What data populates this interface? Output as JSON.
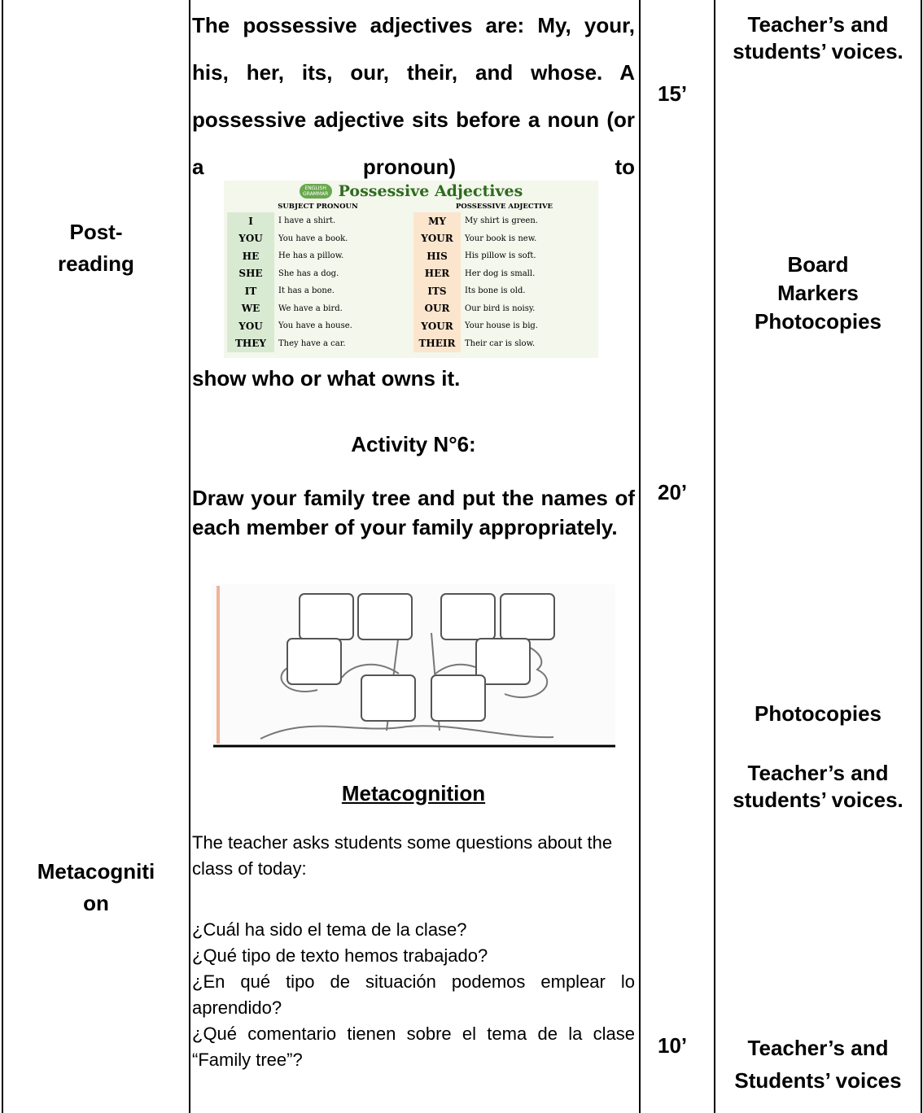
{
  "post_reading": {
    "stage_lines": [
      "Post-",
      "reading"
    ],
    "intro": "The possessive adjectives are: My, your, his, her, its, our, their, and whose. A possessive adjective sits before a noun (or a pronoun) to",
    "grammar_chart": {
      "badge": "ENGLISH GRAMMAR",
      "title": "Possessive Adjectives",
      "headers": [
        "SUBJECT PRONOUN",
        "POSSESSIVE ADJECTIVE"
      ],
      "rows": [
        [
          "I",
          "I have a shirt.",
          "MY",
          "My shirt is green."
        ],
        [
          "YOU",
          "You have a book.",
          "YOUR",
          "Your book is new."
        ],
        [
          "HE",
          "He has a pillow.",
          "HIS",
          "His pillow is soft."
        ],
        [
          "SHE",
          "She has a dog.",
          "HER",
          "Her dog is small."
        ],
        [
          "IT",
          "It has a bone.",
          "ITS",
          "Its bone is old."
        ],
        [
          "WE",
          "We have a bird.",
          "OUR",
          "Our bird is noisy."
        ],
        [
          "YOU",
          "You have a house.",
          "YOUR",
          "Your house is big."
        ],
        [
          "THEY",
          "They have a car.",
          "THEIR",
          "Their car is slow."
        ]
      ]
    },
    "intro_end": "show who or what owns it.",
    "activity_title": "Activity N°6:",
    "activity_text": "Draw your family tree and put the names of each member of your family appropriately.",
    "times": [
      "15’",
      "20’"
    ],
    "materials": [
      "Teacher’s and students’ voices.",
      "Board\nMarkers\nPhotocopies",
      "Photocopies"
    ]
  },
  "metacognition": {
    "stage_lines": [
      "Metacogniti",
      "on"
    ],
    "heading": "Metacognition",
    "intro": "The teacher asks students some questions about the class of today:",
    "questions": [
      "¿Cuál ha sido el tema de la clase?",
      "¿Qué tipo de texto hemos trabajado?",
      "¿En qué tipo de situación podemos emplear lo aprendido?",
      "¿Qué comentario tienen sobre el tema de la clase “Family tree”?"
    ],
    "time": "10’",
    "materials": [
      "Teacher’s and students’ voices.",
      "Teacher’s and Students’ voices"
    ]
  }
}
